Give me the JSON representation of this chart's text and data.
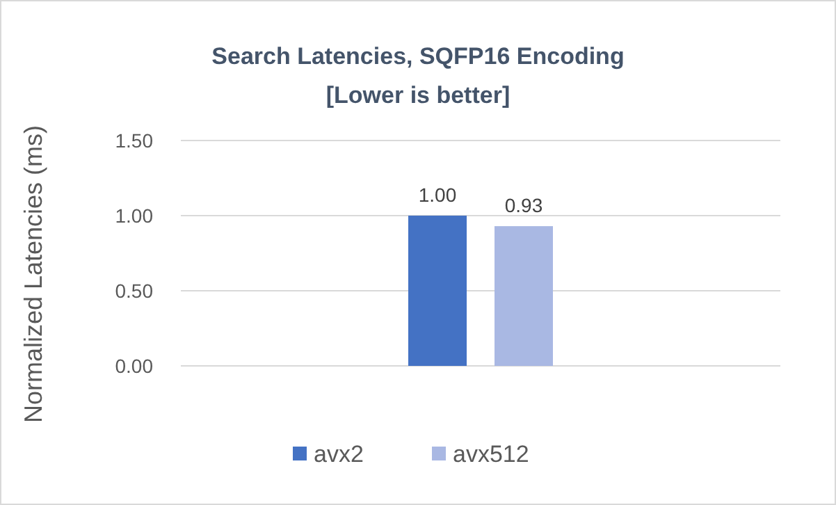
{
  "chart_data": {
    "type": "bar",
    "title": "Search Latencies, SQFP16 Encoding",
    "subtitle": "[Lower is better]",
    "ylabel": "Normalized Latencies (ms)",
    "categories": [
      null
    ],
    "series": [
      {
        "name": "avx2",
        "color": "#4472c4",
        "values": [
          1.0
        ],
        "value_labels": [
          "1.00"
        ]
      },
      {
        "name": "avx512",
        "color": "#a9b8e3",
        "values": [
          0.93
        ],
        "value_labels": [
          "0.93"
        ]
      }
    ],
    "ylim": [
      0,
      1.5
    ],
    "yticks": [
      {
        "value": 0,
        "label": "0.00"
      },
      {
        "value": 0.5,
        "label": "0.50"
      },
      {
        "value": 1,
        "label": "1.00"
      },
      {
        "value": 1.5,
        "label": "1.50"
      }
    ],
    "grid": "y",
    "legend": "bottom"
  }
}
